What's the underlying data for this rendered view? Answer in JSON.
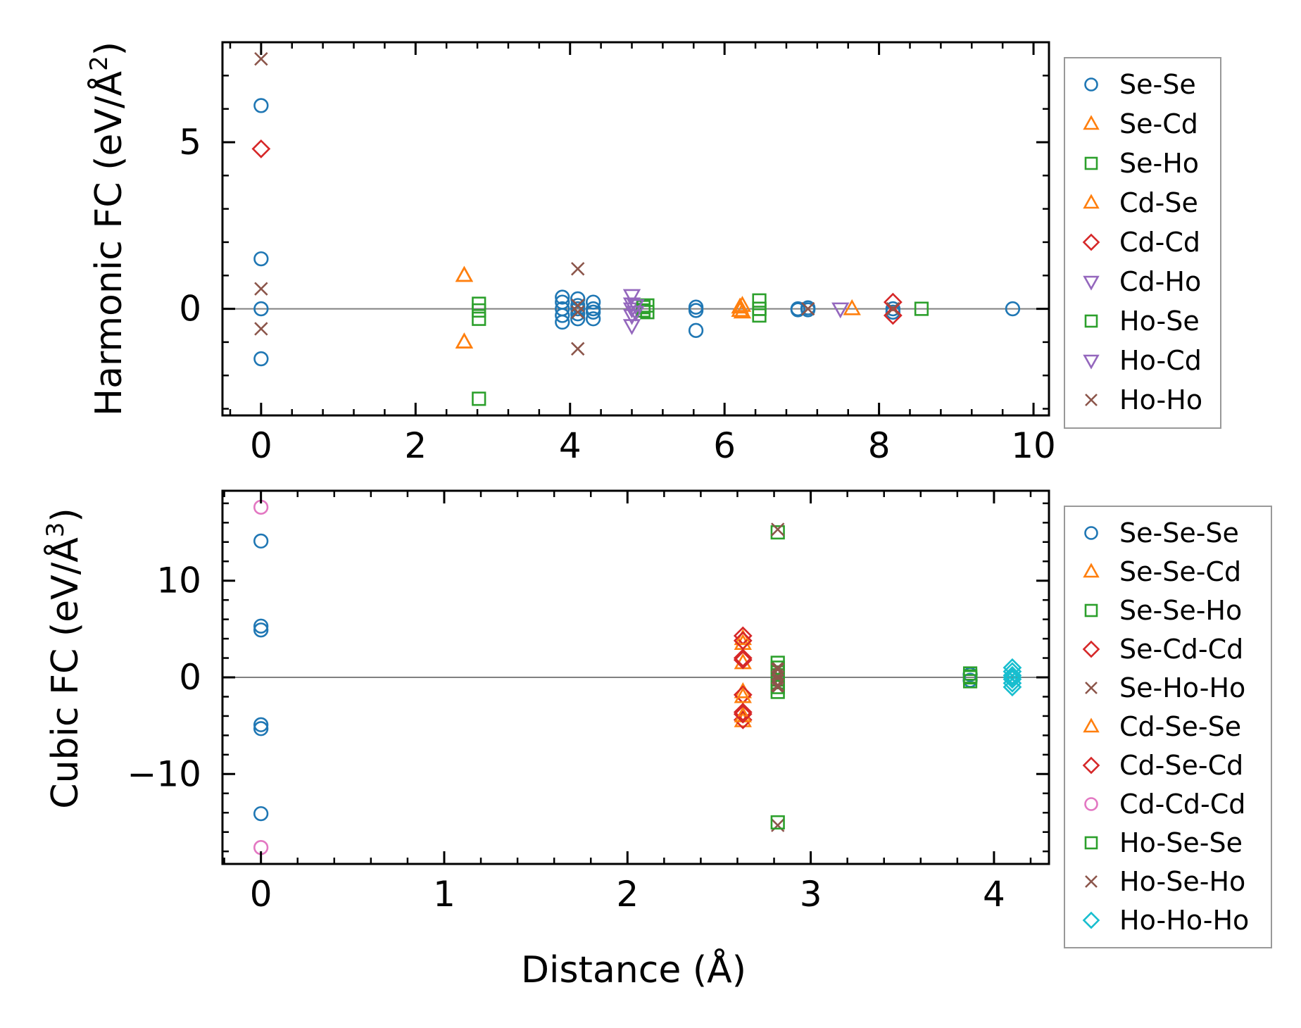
{
  "chart_data": [
    {
      "id": "harmonic",
      "type": "scatter",
      "ylabel": "Harmonic FC (eV/Å²)",
      "ylabel_main": "Harmonic FC (eV/Å",
      "ylabel_sup": "2",
      "ylabel_close": ")",
      "xlabel": "",
      "xlim": [
        -0.5,
        10.2
      ],
      "ylim": [
        -3.2,
        8.0
      ],
      "xticks": [
        0,
        2,
        4,
        6,
        8,
        10
      ],
      "xtick_labels": [
        "0",
        "2",
        "4",
        "6",
        "8",
        "10"
      ],
      "yticks": [
        0,
        5
      ],
      "ytick_labels": [
        "0",
        "5"
      ],
      "hline": 0,
      "legend_loc": "outside right",
      "series": [
        {
          "name": "Se-Se",
          "marker": "circle",
          "color": "#1f77b4",
          "x": [
            0,
            0,
            0,
            0,
            3.9,
            3.9,
            3.9,
            3.9,
            3.9,
            4.1,
            4.1,
            4.1,
            4.1,
            4.1,
            4.3,
            4.3,
            4.3,
            4.3,
            5.63,
            5.63,
            5.63,
            6.95,
            6.95,
            7.08,
            7.08,
            8.18,
            8.18,
            9.73
          ],
          "y": [
            6.1,
            1.5,
            -1.5,
            0.0,
            0.35,
            0.2,
            0.0,
            -0.2,
            -0.4,
            0.3,
            0.1,
            0.0,
            -0.15,
            -0.3,
            0.2,
            0.0,
            -0.1,
            -0.3,
            0.05,
            -0.05,
            -0.65,
            0.0,
            -0.03,
            0.03,
            -0.03,
            0.0,
            -0.1,
            0.0
          ]
        },
        {
          "name": "Se-Cd",
          "marker": "triangle-up",
          "color": "#ff7f0e",
          "x": [
            2.63,
            2.63,
            6.23,
            6.23,
            7.65
          ],
          "y": [
            1.0,
            -1.0,
            0.1,
            -0.1,
            0.0
          ]
        },
        {
          "name": "Se-Ho",
          "marker": "square",
          "color": "#2ca02c",
          "x": [
            2.82,
            2.82,
            2.82,
            2.82,
            5.0,
            5.0,
            6.45,
            6.45,
            6.45,
            8.55
          ],
          "y": [
            0.15,
            -0.05,
            -0.3,
            -2.7,
            0.1,
            -0.1,
            0.25,
            0.0,
            -0.2,
            0.0
          ]
        },
        {
          "name": "Cd-Se",
          "marker": "triangle-up",
          "color": "#ff7f0e",
          "x": [
            2.63,
            2.63,
            6.2,
            6.2
          ],
          "y": [
            1.0,
            -1.0,
            0.05,
            -0.05
          ]
        },
        {
          "name": "Cd-Cd",
          "marker": "diamond",
          "color": "#d62728",
          "x": [
            0,
            8.18,
            8.18
          ],
          "y": [
            4.8,
            0.2,
            -0.2
          ]
        },
        {
          "name": "Cd-Ho",
          "marker": "triangle-down",
          "color": "#9467bd",
          "x": [
            4.8,
            4.8,
            4.8,
            4.8,
            4.8,
            7.5
          ],
          "y": [
            0.4,
            0.15,
            0.0,
            -0.2,
            -0.5,
            0.0
          ]
        },
        {
          "name": "Ho-Se",
          "marker": "square",
          "color": "#2ca02c",
          "x": [
            4.95,
            4.95,
            6.45
          ],
          "y": [
            0.05,
            -0.05,
            0.0
          ]
        },
        {
          "name": "Ho-Cd",
          "marker": "triangle-down",
          "color": "#9467bd",
          "x": [
            4.85,
            4.85
          ],
          "y": [
            0.1,
            -0.1
          ]
        },
        {
          "name": "Ho-Ho",
          "marker": "x",
          "color": "#8c564b",
          "x": [
            0,
            0,
            0,
            4.1,
            4.1,
            4.1,
            4.1,
            7.08,
            8.18
          ],
          "y": [
            7.5,
            0.6,
            -0.6,
            1.2,
            0.1,
            -0.1,
            -1.2,
            0.0,
            0.0
          ]
        }
      ]
    },
    {
      "id": "cubic",
      "type": "scatter",
      "ylabel": "Cubic FC (eV/Å³)",
      "ylabel_main": "Cubic FC (eV/Å",
      "ylabel_sup": "3",
      "ylabel_close": ")",
      "xlabel": "Distance (Å)",
      "xlim": [
        -0.21,
        4.3
      ],
      "ylim": [
        -19.3,
        19.3
      ],
      "xticks": [
        0,
        1,
        2,
        3,
        4
      ],
      "xtick_labels": [
        "0",
        "1",
        "2",
        "3",
        "4"
      ],
      "yticks": [
        -10,
        0,
        10
      ],
      "ytick_labels": [
        "−10",
        "0",
        "10"
      ],
      "hline": 0,
      "legend_loc": "outside right",
      "series": [
        {
          "name": "Se-Se-Se",
          "marker": "circle",
          "color": "#1f77b4",
          "x": [
            0,
            0,
            0,
            0,
            0,
            0,
            3.87,
            3.87
          ],
          "y": [
            14.1,
            5.3,
            4.9,
            -4.9,
            -5.3,
            -14.1,
            0.3,
            -0.3
          ]
        },
        {
          "name": "Se-Se-Cd",
          "marker": "triangle-up",
          "color": "#ff7f0e",
          "x": [
            2.63,
            2.63,
            2.63,
            2.63
          ],
          "y": [
            3.5,
            1.5,
            -1.5,
            -4.5
          ]
        },
        {
          "name": "Se-Se-Ho",
          "marker": "square",
          "color": "#2ca02c",
          "x": [
            2.82,
            2.82,
            2.82,
            2.82,
            2.82,
            3.87,
            3.87,
            3.87
          ],
          "y": [
            15.0,
            1.5,
            0.5,
            -0.5,
            -1.5,
            0.4,
            0.0,
            -0.4
          ]
        },
        {
          "name": "Se-Cd-Cd",
          "marker": "diamond",
          "color": "#d62728",
          "x": [
            2.63,
            2.63,
            2.63,
            2.63,
            2.63
          ],
          "y": [
            4.3,
            2.0,
            -1.8,
            -3.6,
            -4.4
          ]
        },
        {
          "name": "Se-Ho-Ho",
          "marker": "x",
          "color": "#8c564b",
          "x": [
            2.82,
            2.82,
            2.82,
            2.82,
            2.82,
            2.82
          ],
          "y": [
            15.3,
            1.0,
            0.3,
            -0.3,
            -1.0,
            -15.3
          ]
        },
        {
          "name": "Cd-Se-Se",
          "marker": "triangle-up",
          "color": "#ff7f0e",
          "x": [
            2.63,
            2.63,
            2.63
          ],
          "y": [
            4.0,
            -2.0,
            -4.0
          ]
        },
        {
          "name": "Cd-Se-Cd",
          "marker": "diamond",
          "color": "#d62728",
          "x": [
            2.63,
            2.63,
            2.63
          ],
          "y": [
            3.8,
            1.8,
            -3.8
          ]
        },
        {
          "name": "Cd-Cd-Cd",
          "marker": "circle",
          "color": "#e377c2",
          "x": [
            0,
            0
          ],
          "y": [
            17.6,
            -17.6
          ]
        },
        {
          "name": "Ho-Se-Se",
          "marker": "square",
          "color": "#2ca02c",
          "x": [
            2.82,
            2.82,
            2.82,
            3.87
          ],
          "y": [
            -15.0,
            1.0,
            -1.0,
            0.1
          ]
        },
        {
          "name": "Ho-Se-Ho",
          "marker": "x",
          "color": "#8c564b",
          "x": [
            2.82,
            2.82,
            2.82
          ],
          "y": [
            0.8,
            -0.8,
            0.0
          ]
        },
        {
          "name": "Ho-Ho-Ho",
          "marker": "diamond",
          "color": "#17becf",
          "x": [
            4.1,
            4.1,
            4.1,
            4.1,
            4.1,
            4.1,
            4.1
          ],
          "y": [
            1.0,
            0.6,
            0.2,
            0.0,
            -0.2,
            -0.6,
            -1.0
          ]
        }
      ]
    }
  ]
}
